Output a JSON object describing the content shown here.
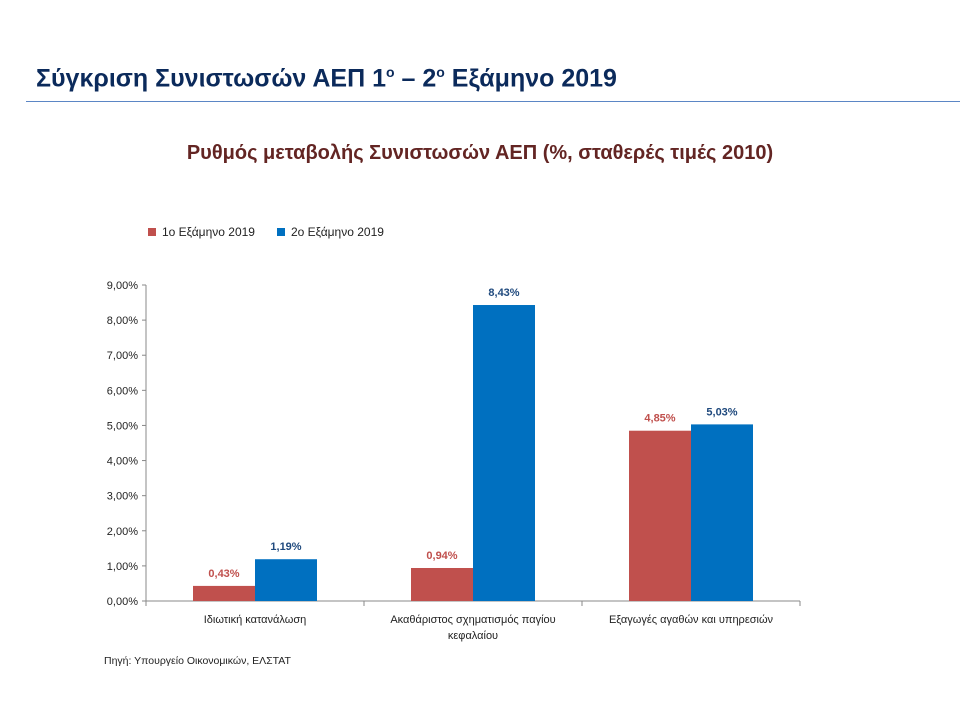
{
  "slide": {
    "title_main": "Σύγκριση Συνιστωσών ΑΕΠ 1",
    "title_sup1": "ο",
    "title_mid": " – 2",
    "title_sup2": "ο",
    "title_end": " Εξάμηνο 2019"
  },
  "source": "Πηγή: Υπουργείο Οικονομικών, ΕΛΣΤΑΤ",
  "chart_data": {
    "type": "bar",
    "title": "Ρυθμός μεταβολής Συνιστωσών ΑΕΠ (%, σταθερές τιμές 2010)",
    "categories": [
      [
        "Ιδιωτική κατανάλωση"
      ],
      [
        "Ακαθάριστος σχηματισμός παγίου",
        "κεφαλαίου"
      ],
      [
        "Εξαγωγές αγαθών και υπηρεσιών"
      ]
    ],
    "series": [
      {
        "name": "1ο Εξάμηνο 2019",
        "color": "#c0504d",
        "values": [
          0.43,
          0.94,
          4.85
        ],
        "labels": [
          "0,43%",
          "0,94%",
          "4,85%"
        ]
      },
      {
        "name": "2ο Εξάμηνο 2019",
        "color": "#0070c0",
        "values": [
          1.19,
          8.43,
          5.03
        ],
        "labels": [
          "1,19%",
          "8,43%",
          "5,03%"
        ]
      }
    ],
    "label_colors": [
      "#c0504d",
      "#1f497d"
    ],
    "y_ticks": [
      "0,00%",
      "1,00%",
      "2,00%",
      "3,00%",
      "4,00%",
      "5,00%",
      "6,00%",
      "7,00%",
      "8,00%",
      "9,00%"
    ],
    "ylim": [
      0,
      9
    ],
    "xlabel": "",
    "ylabel": "",
    "legend_position": "top-left",
    "grid": false
  }
}
